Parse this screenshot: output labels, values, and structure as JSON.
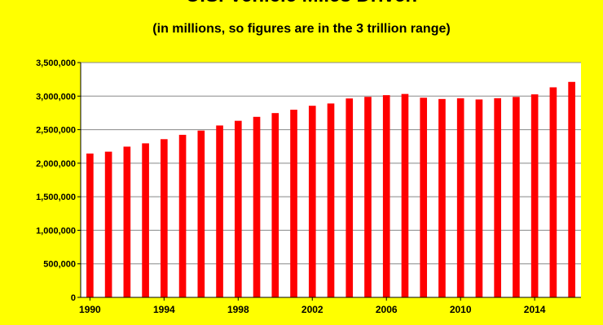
{
  "colors": {
    "background": "#FFFF00",
    "plot_area": "#FFFFFF",
    "bar": "#FF0000",
    "grid": "#888888"
  },
  "chart_data": {
    "type": "bar",
    "title": "U.S. Vehicle Miles Driven",
    "subtitle": "(in millions, so figures are in the 3 trillion range)",
    "xlabel": "",
    "ylabel": "",
    "ylim": [
      0,
      3500000
    ],
    "yticks": [
      0,
      500000,
      1000000,
      1500000,
      2000000,
      2500000,
      3000000,
      3500000
    ],
    "ytick_labels": [
      "0",
      "500,000",
      "1,000,000",
      "1,500,000",
      "2,000,000",
      "2,500,000",
      "3,000,000",
      "3,500,000"
    ],
    "xtick_labels": [
      "1990",
      "1994",
      "1998",
      "2002",
      "2006",
      "2010",
      "2014"
    ],
    "grid": true,
    "legend": "none",
    "categories": [
      "1990",
      "1991",
      "1992",
      "1993",
      "1994",
      "1995",
      "1996",
      "1997",
      "1998",
      "1999",
      "2000",
      "2001",
      "2002",
      "2003",
      "2004",
      "2005",
      "2006",
      "2007",
      "2008",
      "2009",
      "2010",
      "2011",
      "2012",
      "2013",
      "2014",
      "2015",
      "2016"
    ],
    "values": [
      2144000,
      2172000,
      2247000,
      2296000,
      2358000,
      2423000,
      2486000,
      2562000,
      2632000,
      2691000,
      2747000,
      2797000,
      2856000,
      2890000,
      2965000,
      2989000,
      3014000,
      3032000,
      2976000,
      2957000,
      2967000,
      2950000,
      2969000,
      2988000,
      3026000,
      3131000,
      3212000
    ]
  }
}
